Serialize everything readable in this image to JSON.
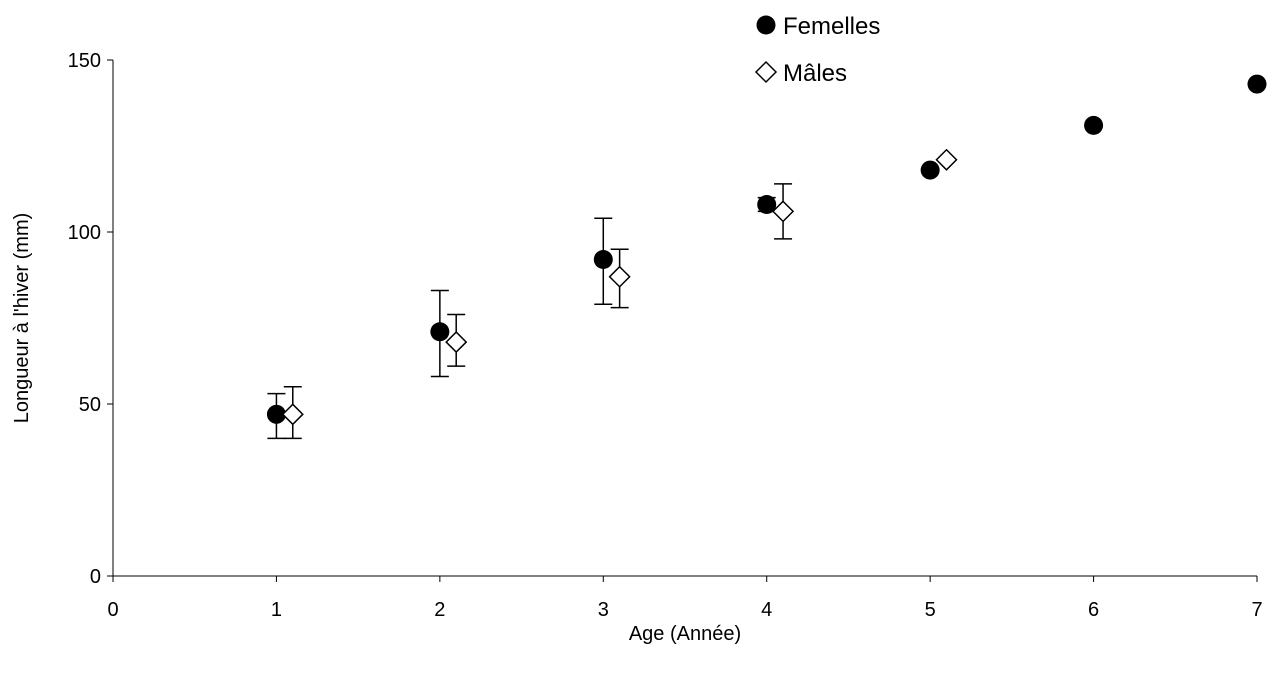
{
  "chart_data": {
    "type": "scatter",
    "xlabel": "Age (Année)",
    "ylabel": "Longueur à l'hiver (mm)",
    "xlim": [
      0,
      7
    ],
    "ylim": [
      0,
      150
    ],
    "x_ticks": [
      "0",
      "1",
      "2",
      "3",
      "4",
      "5",
      "6",
      "7"
    ],
    "y_ticks": [
      "0",
      "50",
      "100",
      "150"
    ],
    "grid": false,
    "legend_position": "top-center",
    "series": [
      {
        "name": "Femelles",
        "marker": "filled-circle",
        "color": "#000000",
        "points": [
          {
            "x": 1,
            "y": 47,
            "err_low": 40,
            "err_high": 53
          },
          {
            "x": 2,
            "y": 71,
            "err_low": 58,
            "err_high": 83
          },
          {
            "x": 3,
            "y": 92,
            "err_low": 79,
            "err_high": 104
          },
          {
            "x": 4,
            "y": 108,
            "err_low": 106,
            "err_high": 110
          },
          {
            "x": 5,
            "y": 118
          },
          {
            "x": 6,
            "y": 131
          },
          {
            "x": 7,
            "y": 143
          }
        ]
      },
      {
        "name": "Mâles",
        "marker": "open-diamond",
        "color": "#000000",
        "points": [
          {
            "x": 1.1,
            "y": 47,
            "err_low": 40,
            "err_high": 55
          },
          {
            "x": 2.1,
            "y": 68,
            "err_low": 61,
            "err_high": 76
          },
          {
            "x": 3.1,
            "y": 87,
            "err_low": 78,
            "err_high": 95
          },
          {
            "x": 4.1,
            "y": 106,
            "err_low": 98,
            "err_high": 114
          },
          {
            "x": 5.1,
            "y": 121
          }
        ]
      }
    ]
  }
}
